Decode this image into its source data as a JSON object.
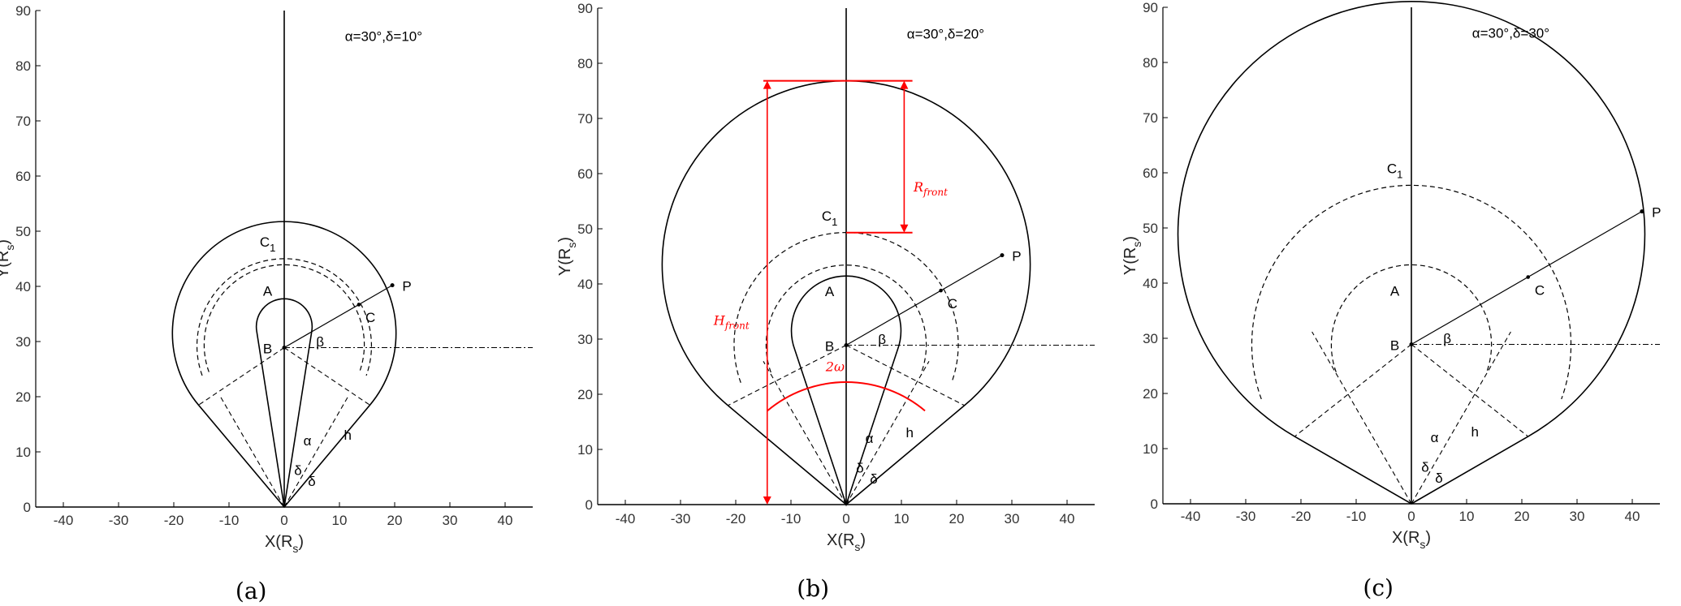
{
  "panels": [
    {
      "id": "a",
      "subcaption": "(a)",
      "annotation": "α=30°,δ=10°",
      "params": {
        "alpha_deg": 30,
        "delta_deg": 10,
        "B_y": 28.9
      },
      "xlabel": "X(R",
      "xlabel_sub": "s",
      "xlabel_close": ")",
      "ylabel": "Y(R",
      "ylabel_sub": "s",
      "ylabel_close": ")",
      "xlim": [
        -45,
        45
      ],
      "ylim": [
        0,
        90
      ],
      "xticks": [
        "-40",
        "-30",
        "-20",
        "-10",
        "0",
        "10",
        "20",
        "30",
        "40"
      ],
      "yticks": [
        "0",
        "10",
        "20",
        "30",
        "40",
        "50",
        "60",
        "70",
        "80",
        "90"
      ],
      "labels": {
        "C1": "C",
        "C1_sub": "1",
        "A": "A",
        "B": "B",
        "P": "P",
        "C": "C",
        "beta": "β",
        "alpha": "α",
        "h": "h",
        "delta1": "δ",
        "delta2": "δ"
      }
    },
    {
      "id": "b",
      "subcaption": "(b)",
      "annotation": "α=30°,δ=20°",
      "params": {
        "alpha_deg": 30,
        "delta_deg": 20,
        "B_y": 28.9
      },
      "xlabel": "X(R",
      "xlabel_sub": "s",
      "xlabel_close": ")",
      "ylabel": "Y(R",
      "ylabel_sub": "s",
      "ylabel_close": ")",
      "xlim": [
        -45,
        45
      ],
      "ylim": [
        0,
        90
      ],
      "xticks": [
        "-40",
        "-30",
        "-20",
        "-10",
        "0",
        "10",
        "20",
        "30",
        "40"
      ],
      "yticks": [
        "0",
        "10",
        "20",
        "30",
        "40",
        "50",
        "60",
        "70",
        "80",
        "90"
      ],
      "labels": {
        "C1": "C",
        "C1_sub": "1",
        "A": "A",
        "B": "B",
        "P": "P",
        "C": "C",
        "beta": "β",
        "alpha": "α",
        "h": "h",
        "delta1": "δ",
        "delta2": "δ"
      },
      "red_labels": {
        "R_front": "R",
        "R_front_sub": "front",
        "H_front": "H",
        "H_front_sub": "front",
        "two_omega": "2ω"
      }
    },
    {
      "id": "c",
      "subcaption": "(c)",
      "annotation": "α=30°,δ=30°",
      "params": {
        "alpha_deg": 30,
        "delta_deg": 30,
        "B_y": 28.9
      },
      "xlabel": "X(R",
      "xlabel_sub": "s",
      "xlabel_close": ")",
      "ylabel": "Y(R",
      "ylabel_sub": "s",
      "ylabel_close": ")",
      "xlim": [
        -45,
        45
      ],
      "ylim": [
        0,
        90
      ],
      "xticks": [
        "-40",
        "-30",
        "-20",
        "-10",
        "0",
        "10",
        "20",
        "30",
        "40"
      ],
      "yticks": [
        "0",
        "10",
        "20",
        "30",
        "40",
        "50",
        "60",
        "70",
        "80",
        "90"
      ],
      "labels": {
        "C1": "C",
        "C1_sub": "1",
        "A": "A",
        "B": "B",
        "P": "P",
        "C": "C",
        "beta": "β",
        "alpha": "α",
        "h": "h",
        "delta1": "δ",
        "delta2": "δ"
      }
    }
  ],
  "colors": {
    "line": "#000000",
    "red": "#ff0000",
    "tick_text": "#333333"
  }
}
